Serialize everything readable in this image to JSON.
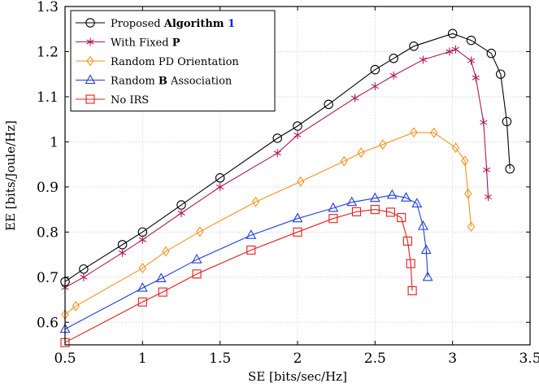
{
  "chart_data": {
    "type": "line",
    "xlabel": "SE [bits/sec/Hz]",
    "ylabel": "EE [bits/Joule/Hz]",
    "xlim": [
      0.5,
      3.5
    ],
    "ylim": [
      0.55,
      1.3
    ],
    "x_ticks": [
      0.5,
      1,
      1.5,
      2,
      2.5,
      3,
      3.5
    ],
    "x_tick_labels": [
      "0.5",
      "1",
      "1.5",
      "2",
      "2.5",
      "3",
      "3.5"
    ],
    "y_ticks": [
      0.6,
      0.7,
      0.8,
      0.9,
      1.0,
      1.1,
      1.2,
      1.3
    ],
    "y_tick_labels": [
      "0.6",
      "0.7",
      "0.8",
      "0.9",
      "1",
      "1.1",
      "1.2",
      "1.3"
    ],
    "grid": true,
    "legend_position": "top-left",
    "series": [
      {
        "name": "Proposed Algorithm 1",
        "legend_parts": [
          {
            "text": "Proposed ",
            "weight": "normal",
            "color": "#000000"
          },
          {
            "text": "Algorithm ",
            "weight": "bold",
            "color": "#000000"
          },
          {
            "text": "1",
            "weight": "bold",
            "color": "#1a1aff"
          }
        ],
        "color": "#000000",
        "marker": "circle",
        "points": [
          [
            0.5,
            0.69
          ],
          [
            0.62,
            0.718
          ],
          [
            0.87,
            0.772
          ],
          [
            1.0,
            0.8
          ],
          [
            1.25,
            0.86
          ],
          [
            1.5,
            0.92
          ],
          [
            1.87,
            1.008
          ],
          [
            2.0,
            1.035
          ],
          [
            2.2,
            1.083
          ],
          [
            2.5,
            1.16
          ],
          [
            2.62,
            1.185
          ],
          [
            2.75,
            1.212
          ],
          [
            3.0,
            1.24
          ],
          [
            3.12,
            1.225
          ],
          [
            3.25,
            1.196
          ],
          [
            3.31,
            1.15
          ],
          [
            3.35,
            1.045
          ],
          [
            3.37,
            0.94
          ]
        ]
      },
      {
        "name": "With Fixed P",
        "legend_parts": [
          {
            "text": "With Fixed ",
            "weight": "normal",
            "color": "#000000"
          },
          {
            "text": "P",
            "weight": "bold",
            "color": "#000000"
          }
        ],
        "color": "#b0185a",
        "marker": "star",
        "points": [
          [
            0.5,
            0.677
          ],
          [
            0.62,
            0.7
          ],
          [
            0.87,
            0.754
          ],
          [
            1.0,
            0.783
          ],
          [
            1.25,
            0.842
          ],
          [
            1.5,
            0.9
          ],
          [
            1.87,
            0.975
          ],
          [
            2.0,
            1.015
          ],
          [
            2.37,
            1.097
          ],
          [
            2.5,
            1.123
          ],
          [
            2.62,
            1.147
          ],
          [
            2.81,
            1.182
          ],
          [
            2.98,
            1.2
          ],
          [
            3.02,
            1.205
          ],
          [
            3.12,
            1.18
          ],
          [
            3.15,
            1.142
          ],
          [
            3.2,
            1.043
          ],
          [
            3.22,
            0.938
          ],
          [
            3.23,
            0.878
          ]
        ]
      },
      {
        "name": "Random PD Orientation",
        "legend_parts": [
          {
            "text": "Random PD Orientation",
            "weight": "normal",
            "color": "#000000"
          }
        ],
        "color": "#f5921e",
        "marker": "diamond",
        "points": [
          [
            0.5,
            0.617
          ],
          [
            0.57,
            0.636
          ],
          [
            1.0,
            0.72
          ],
          [
            1.15,
            0.757
          ],
          [
            1.37,
            0.801
          ],
          [
            1.73,
            0.867
          ],
          [
            2.02,
            0.912
          ],
          [
            2.3,
            0.957
          ],
          [
            2.41,
            0.976
          ],
          [
            2.55,
            0.994
          ],
          [
            2.75,
            1.021
          ],
          [
            2.88,
            1.02
          ],
          [
            3.02,
            0.987
          ],
          [
            3.08,
            0.958
          ],
          [
            3.1,
            0.885
          ],
          [
            3.12,
            0.812
          ]
        ]
      },
      {
        "name": "Random B Association",
        "legend_parts": [
          {
            "text": "Random ",
            "weight": "normal",
            "color": "#000000"
          },
          {
            "text": "B",
            "weight": "bold",
            "color": "#000000"
          },
          {
            "text": " Association",
            "weight": "normal",
            "color": "#000000"
          }
        ],
        "color": "#1f3fd9",
        "marker": "triangle",
        "points": [
          [
            0.5,
            0.585
          ],
          [
            1.0,
            0.676
          ],
          [
            1.12,
            0.697
          ],
          [
            1.35,
            0.739
          ],
          [
            1.7,
            0.793
          ],
          [
            2.0,
            0.83
          ],
          [
            2.23,
            0.853
          ],
          [
            2.35,
            0.866
          ],
          [
            2.5,
            0.875
          ],
          [
            2.61,
            0.882
          ],
          [
            2.7,
            0.876
          ],
          [
            2.77,
            0.863
          ],
          [
            2.81,
            0.813
          ],
          [
            2.83,
            0.76
          ],
          [
            2.84,
            0.7
          ]
        ]
      },
      {
        "name": "No IRS",
        "legend_parts": [
          {
            "text": "No IRS",
            "weight": "normal",
            "color": "#000000"
          }
        ],
        "color": "#e81c1c",
        "marker": "square",
        "points": [
          [
            0.5,
            0.555
          ],
          [
            1.0,
            0.645
          ],
          [
            1.13,
            0.667
          ],
          [
            1.35,
            0.707
          ],
          [
            1.7,
            0.76
          ],
          [
            2.0,
            0.8
          ],
          [
            2.23,
            0.83
          ],
          [
            2.38,
            0.845
          ],
          [
            2.5,
            0.85
          ],
          [
            2.6,
            0.844
          ],
          [
            2.67,
            0.832
          ],
          [
            2.71,
            0.78
          ],
          [
            2.73,
            0.73
          ],
          [
            2.74,
            0.67
          ]
        ]
      }
    ]
  }
}
